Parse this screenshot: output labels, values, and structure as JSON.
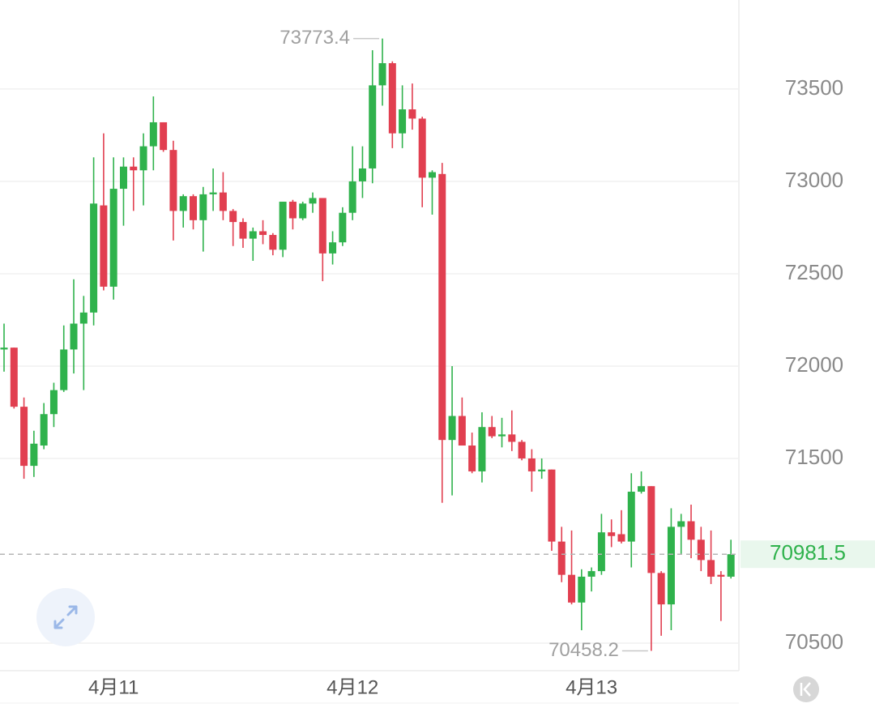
{
  "chart_data": {
    "type": "candlestick",
    "categories": [
      null,
      null,
      null,
      null,
      null,
      null,
      null,
      null,
      null,
      null,
      null,
      "4月11",
      null,
      null,
      null,
      null,
      null,
      null,
      null,
      null,
      null,
      null,
      null,
      null,
      null,
      null,
      null,
      null,
      null,
      null,
      null,
      null,
      null,
      null,
      null,
      "4月12",
      null,
      null,
      null,
      null,
      null,
      null,
      null,
      null,
      null,
      null,
      null,
      null,
      null,
      null,
      null,
      null,
      null,
      null,
      null,
      null,
      null,
      null,
      null,
      "4月13",
      null,
      null,
      null,
      null,
      null,
      null,
      null,
      null,
      null,
      null,
      null,
      null,
      null,
      null
    ],
    "open": [
      72090,
      72100,
      71780,
      71460,
      71570,
      71740,
      71870,
      72090,
      72230,
      72290,
      72870,
      72430,
      72960,
      73080,
      73060,
      73190,
      73320,
      73170,
      72840,
      72920,
      72790,
      72930,
      72940,
      72840,
      72780,
      72690,
      72730,
      72710,
      72630,
      72890,
      72800,
      72880,
      72910,
      72610,
      72670,
      72830,
      73000,
      73070,
      73520,
      73640,
      73260,
      73390,
      73340,
      73020,
      73040,
      71600,
      71730,
      71570,
      71430,
      71670,
      71620,
      71630,
      71590,
      71500,
      71430,
      71440,
      71050,
      70870,
      70720,
      70860,
      70890,
      71100,
      71090,
      71050,
      71320,
      71350,
      70880,
      70710,
      71130,
      71160,
      71060,
      70950,
      70870,
      70860
    ],
    "high": [
      72230,
      72100,
      71830,
      71650,
      71800,
      71910,
      72220,
      72470,
      72380,
      73130,
      73260,
      73130,
      73130,
      73130,
      73260,
      73460,
      73320,
      73220,
      72930,
      72930,
      72970,
      73070,
      73050,
      72850,
      72800,
      72750,
      72790,
      72720,
      72890,
      72900,
      72890,
      72940,
      72910,
      72730,
      72860,
      73190,
      73190,
      73710,
      73773.4,
      73650,
      73520,
      73530,
      73350,
      73060,
      73100,
      72000,
      71830,
      71640,
      71750,
      71730,
      71720,
      71760,
      71600,
      71550,
      71500,
      71440,
      71130,
      71110,
      70900,
      70910,
      71200,
      71170,
      71220,
      71420,
      71430,
      71350,
      70890,
      71230,
      71200,
      71250,
      71130,
      71110,
      70890,
      71060
    ],
    "low": [
      71970,
      71770,
      71390,
      71400,
      71550,
      71670,
      71860,
      71960,
      71870,
      72220,
      72410,
      72360,
      72760,
      72840,
      72870,
      73060,
      73160,
      72680,
      72750,
      72740,
      72620,
      72840,
      72790,
      72650,
      72640,
      72570,
      72660,
      72600,
      72590,
      72740,
      72790,
      72830,
      72460,
      72550,
      72650,
      72790,
      72910,
      72990,
      73410,
      73180,
      73180,
      73280,
      72860,
      72820,
      71260,
      71300,
      71570,
      71420,
      71370,
      71610,
      71560,
      71540,
      71490,
      71320,
      71390,
      71000,
      70830,
      70710,
      70570,
      70780,
      70870,
      71020,
      71040,
      70910,
      71310,
      70458.2,
      70540,
      70570,
      70980,
      70960,
      70890,
      70820,
      70620,
      70850
    ],
    "close": [
      72100,
      71780,
      71460,
      71580,
      71740,
      71870,
      72090,
      72230,
      72290,
      72880,
      72430,
      72960,
      73080,
      73060,
      73190,
      73320,
      73170,
      72840,
      72920,
      72790,
      72930,
      72940,
      72840,
      72780,
      72690,
      72730,
      72710,
      72630,
      72890,
      72800,
      72880,
      72910,
      72610,
      72670,
      72830,
      73000,
      73070,
      73520,
      73640,
      73260,
      73390,
      73340,
      73020,
      73050,
      71600,
      71730,
      71570,
      71430,
      71670,
      71620,
      71630,
      71590,
      71500,
      71430,
      71440,
      71050,
      70870,
      70720,
      70860,
      70890,
      71100,
      71080,
      71050,
      71320,
      71350,
      70880,
      70710,
      71130,
      71160,
      71060,
      70950,
      70860,
      70860,
      70981.5
    ],
    "up_color": "#2fb24c",
    "down_color": "#e13f50",
    "ylim": [
      70351,
      73982
    ],
    "yticks": [
      70500,
      71500,
      72000,
      72500,
      73000,
      73500
    ],
    "grid": true
  }
}
